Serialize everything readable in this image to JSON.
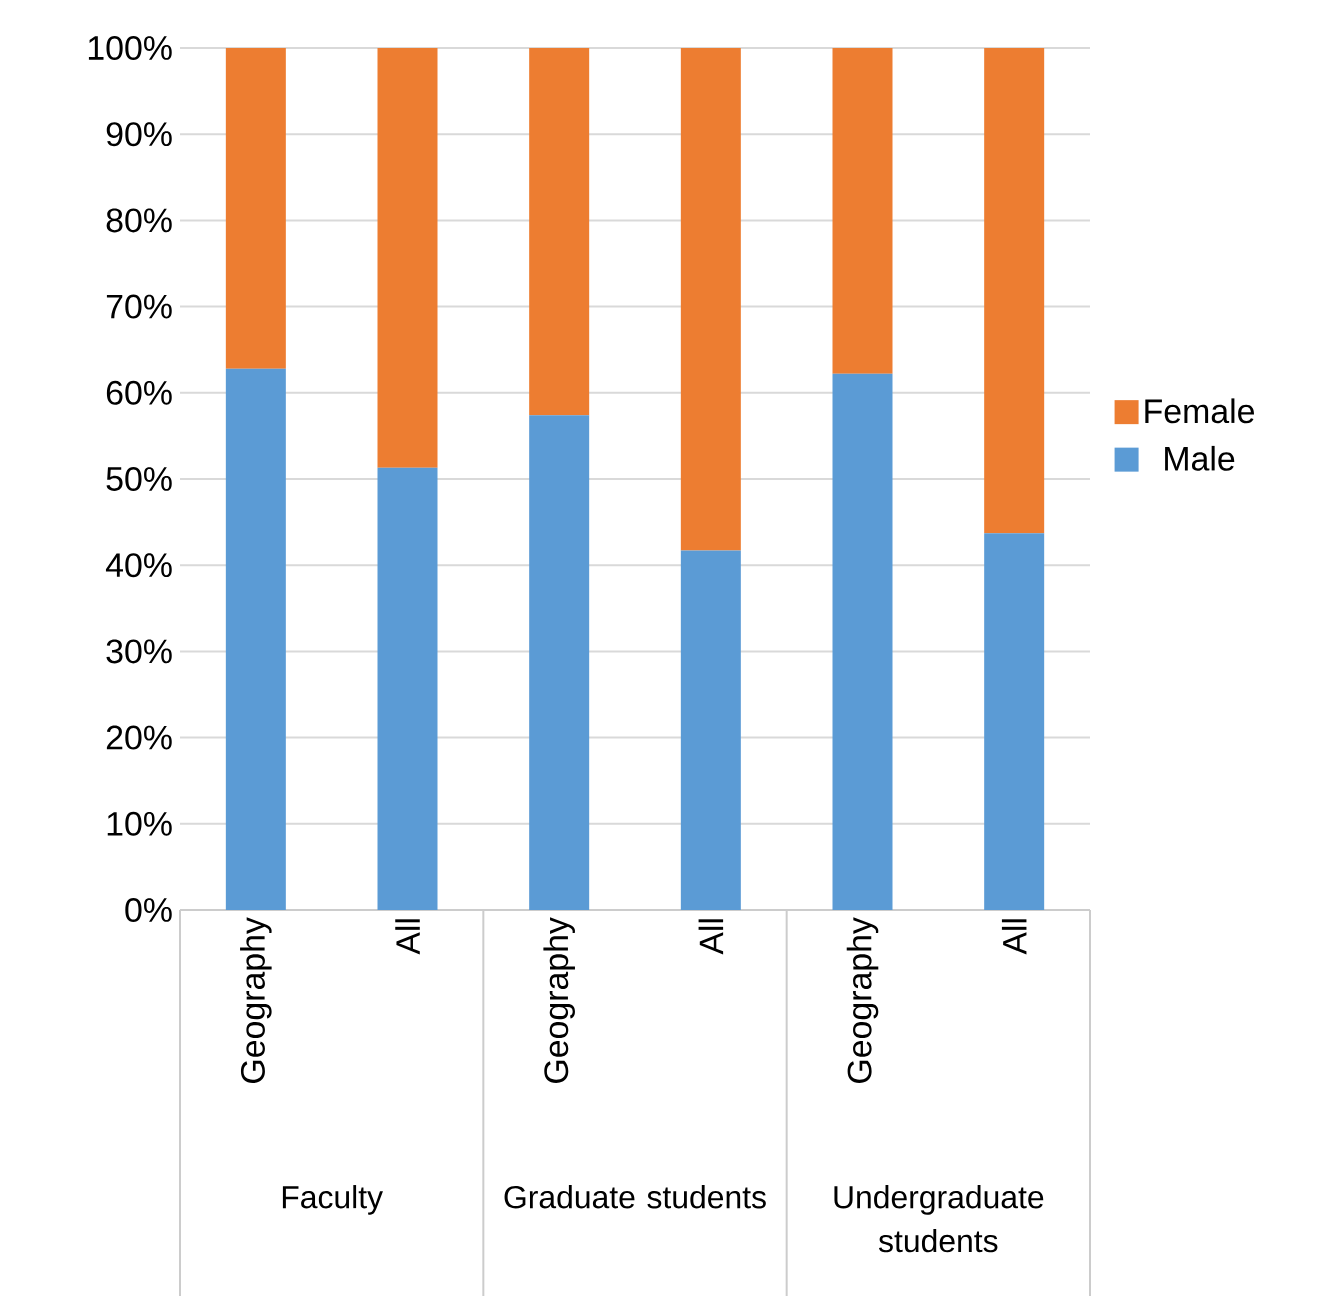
{
  "chart_data": {
    "type": "bar",
    "stacked": true,
    "categories": [
      "Geography",
      "All",
      "Geography",
      "All",
      "Geography",
      "All"
    ],
    "series": [
      {
        "name": "Male",
        "color": "#5b9bd5",
        "values": [
          62.8,
          51.3,
          57.4,
          41.7,
          62.2,
          43.7
        ]
      },
      {
        "name": "Female",
        "color": "#ed7d31",
        "values": [
          37.2,
          48.7,
          42.6,
          58.3,
          37.8,
          56.3
        ]
      }
    ],
    "ylim": [
      0,
      100
    ],
    "yticks": [
      {
        "value": 0,
        "label": "0%"
      },
      {
        "value": 10,
        "label": "10%"
      },
      {
        "value": 20,
        "label": "20%"
      },
      {
        "value": 30,
        "label": "30%"
      },
      {
        "value": 40,
        "label": "40%"
      },
      {
        "value": 50,
        "label": "50%"
      },
      {
        "value": 60,
        "label": "60%"
      },
      {
        "value": 70,
        "label": "70%"
      },
      {
        "value": 80,
        "label": "80%"
      },
      {
        "value": 90,
        "label": "90%"
      },
      {
        "value": 100,
        "label": "100%"
      }
    ],
    "annotations": [
      "Faculty",
      "Graduate students",
      "Undergraduate students"
    ],
    "grid": "y",
    "legend": "right"
  }
}
